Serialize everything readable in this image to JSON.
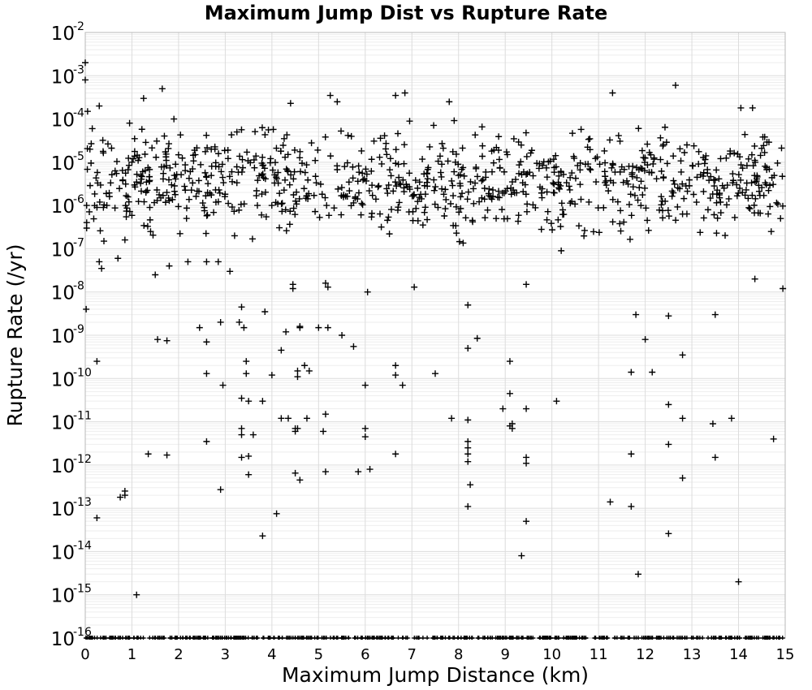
{
  "chart_data": {
    "type": "scatter",
    "title": "Maximum Jump Dist vs Rupture Rate",
    "xlabel": "Maximum Jump Distance (km)",
    "ylabel": "Rupture Rate (/yr)",
    "xlim": [
      0,
      15
    ],
    "ylim": [
      1e-16,
      0.01
    ],
    "yscale": "log",
    "grid": true,
    "marker": "plus",
    "marker_color": "#000000",
    "x_ticks": [
      "0",
      "1",
      "2",
      "3",
      "4",
      "5",
      "6",
      "7",
      "8",
      "9",
      "10",
      "11",
      "12",
      "13",
      "14",
      "15"
    ],
    "y_ticks": [
      {
        "base": "10",
        "exp": "-16"
      },
      {
        "base": "10",
        "exp": "-15"
      },
      {
        "base": "10",
        "exp": "-14"
      },
      {
        "base": "10",
        "exp": "-13"
      },
      {
        "base": "10",
        "exp": "-12"
      },
      {
        "base": "10",
        "exp": "-11"
      },
      {
        "base": "10",
        "exp": "-10"
      },
      {
        "base": "10",
        "exp": "-9"
      },
      {
        "base": "10",
        "exp": "-8"
      },
      {
        "base": "10",
        "exp": "-7"
      },
      {
        "base": "10",
        "exp": "-6"
      },
      {
        "base": "10",
        "exp": "-5"
      },
      {
        "base": "10",
        "exp": "-4"
      },
      {
        "base": "10",
        "exp": "-3"
      },
      {
        "base": "10",
        "exp": "-2"
      }
    ],
    "points": [
      [
        0.0,
        0.002
      ],
      [
        0.0,
        0.0008
      ],
      [
        0.02,
        4e-09
      ],
      [
        0.03,
        3e-07
      ],
      [
        0.05,
        0.00015
      ],
      [
        0.1,
        2e-05
      ],
      [
        0.15,
        6e-05
      ],
      [
        0.25,
        2.5e-10
      ],
      [
        0.25,
        6e-14
      ],
      [
        0.3,
        5e-08
      ],
      [
        0.35,
        3.5e-08
      ],
      [
        0.4,
        1.5e-07
      ],
      [
        0.3,
        0.0002
      ],
      [
        0.2,
        1e-06
      ],
      [
        0.7,
        6e-08
      ],
      [
        0.75,
        1.8e-13
      ],
      [
        0.85,
        2.5e-13
      ],
      [
        0.85,
        2e-13
      ],
      [
        0.85,
        1.6e-07
      ],
      [
        0.95,
        8e-05
      ],
      [
        1.0,
        1e-05
      ],
      [
        1.1,
        1e-15
      ],
      [
        1.25,
        0.0003
      ],
      [
        1.35,
        1.8e-12
      ],
      [
        1.3,
        2e-06
      ],
      [
        1.4,
        2.5e-07
      ],
      [
        1.5,
        2.5e-08
      ],
      [
        1.55,
        8e-10
      ],
      [
        1.65,
        0.0005
      ],
      [
        1.75,
        7.5e-10
      ],
      [
        1.75,
        1.7e-12
      ],
      [
        1.8,
        4e-08
      ],
      [
        1.9,
        0.0001
      ],
      [
        1.85,
        3e-06
      ],
      [
        2.2,
        5e-08
      ],
      [
        2.3,
        7e-06
      ],
      [
        2.45,
        1.5e-09
      ],
      [
        2.6,
        3.5e-12
      ],
      [
        2.6,
        7e-10
      ],
      [
        2.6,
        1.3e-10
      ],
      [
        2.6,
        5e-08
      ],
      [
        2.7,
        2e-05
      ],
      [
        2.85,
        5e-08
      ],
      [
        2.9,
        2.7e-13
      ],
      [
        2.9,
        2e-09
      ],
      [
        2.95,
        7e-11
      ],
      [
        3.1,
        3e-08
      ],
      [
        3.2,
        2e-07
      ],
      [
        3.25,
        5e-05
      ],
      [
        3.3,
        2e-09
      ],
      [
        3.35,
        4.5e-09
      ],
      [
        3.35,
        3.5e-11
      ],
      [
        3.35,
        7e-12
      ],
      [
        3.35,
        5e-12
      ],
      [
        3.35,
        1.5e-12
      ],
      [
        3.4,
        1.5e-09
      ],
      [
        3.45,
        2.5e-10
      ],
      [
        3.45,
        1.3e-10
      ],
      [
        3.5,
        3e-11
      ],
      [
        3.5,
        6e-13
      ],
      [
        3.5,
        1.6e-12
      ],
      [
        3.6,
        5e-12
      ],
      [
        3.8,
        2.3e-14
      ],
      [
        3.8,
        3e-11
      ],
      [
        3.85,
        3.5e-09
      ],
      [
        4.0,
        1.2e-10
      ],
      [
        4.1,
        7.5e-14
      ],
      [
        4.2,
        1.2e-11
      ],
      [
        4.2,
        4.5e-10
      ],
      [
        4.3,
        1.2e-09
      ],
      [
        4.35,
        1.2e-11
      ],
      [
        4.4,
        0.00023
      ],
      [
        4.45,
        1.5e-08
      ],
      [
        4.45,
        1.2e-08
      ],
      [
        4.5,
        7e-12
      ],
      [
        4.5,
        6e-12
      ],
      [
        4.5,
        6.5e-13
      ],
      [
        4.55,
        1.1e-10
      ],
      [
        4.55,
        1.5e-10
      ],
      [
        4.55,
        7e-12
      ],
      [
        4.6,
        1.6e-09
      ],
      [
        4.6,
        4.5e-13
      ],
      [
        4.6,
        1.5e-09
      ],
      [
        4.7,
        2e-10
      ],
      [
        4.75,
        1.2e-11
      ],
      [
        4.8,
        1.5e-10
      ],
      [
        5.0,
        1.5e-09
      ],
      [
        5.1,
        6e-12
      ],
      [
        5.15,
        7e-13
      ],
      [
        5.15,
        1.5e-11
      ],
      [
        5.15,
        1.6e-08
      ],
      [
        5.2,
        1.3e-08
      ],
      [
        5.2,
        1.5e-09
      ],
      [
        5.25,
        0.00035
      ],
      [
        5.4,
        0.00025
      ],
      [
        5.5,
        1e-09
      ],
      [
        5.75,
        5.5e-10
      ],
      [
        5.85,
        7e-13
      ],
      [
        6.0,
        7e-11
      ],
      [
        6.0,
        7e-12
      ],
      [
        6.0,
        4.5e-12
      ],
      [
        6.05,
        1e-08
      ],
      [
        6.1,
        8e-13
      ],
      [
        6.65,
        0.00035
      ],
      [
        6.65,
        2e-10
      ],
      [
        6.65,
        1.2e-10
      ],
      [
        6.65,
        1.8e-12
      ],
      [
        6.8,
        7e-11
      ],
      [
        6.85,
        0.0004
      ],
      [
        7.05,
        1.3e-08
      ],
      [
        7.5,
        1.3e-10
      ],
      [
        7.8,
        0.00025
      ],
      [
        7.85,
        1.2e-11
      ],
      [
        8.2,
        5e-09
      ],
      [
        8.2,
        5e-10
      ],
      [
        8.2,
        1.1e-11
      ],
      [
        8.2,
        3.5e-12
      ],
      [
        8.2,
        2.5e-12
      ],
      [
        8.2,
        1.8e-12
      ],
      [
        8.2,
        1.2e-12
      ],
      [
        8.25,
        3.5e-13
      ],
      [
        8.2,
        1.1e-13
      ],
      [
        8.4,
        8.5e-10
      ],
      [
        8.95,
        2e-11
      ],
      [
        9.1,
        2.5e-10
      ],
      [
        9.1,
        4.5e-11
      ],
      [
        9.1,
        8e-12
      ],
      [
        9.15,
        7e-12
      ],
      [
        9.15,
        9e-12
      ],
      [
        9.35,
        8e-15
      ],
      [
        9.45,
        1.5e-12
      ],
      [
        9.45,
        1.1e-12
      ],
      [
        9.45,
        5e-14
      ],
      [
        9.45,
        2e-11
      ],
      [
        9.45,
        1.5e-08
      ],
      [
        10.1,
        3e-11
      ],
      [
        10.2,
        9e-08
      ],
      [
        11.25,
        1.4e-13
      ],
      [
        11.3,
        0.0004
      ],
      [
        11.8,
        3e-09
      ],
      [
        11.85,
        3e-15
      ],
      [
        11.7,
        1.4e-10
      ],
      [
        11.7,
        1.8e-12
      ],
      [
        11.7,
        1.1e-13
      ],
      [
        12.0,
        8e-10
      ],
      [
        12.15,
        1.4e-10
      ],
      [
        12.5,
        2.8e-09
      ],
      [
        12.5,
        2.5e-11
      ],
      [
        12.5,
        3e-12
      ],
      [
        12.5,
        2.6e-14
      ],
      [
        12.65,
        0.0006
      ],
      [
        12.8,
        3.5e-10
      ],
      [
        12.8,
        1.2e-11
      ],
      [
        12.8,
        5e-13
      ],
      [
        13.45,
        9e-12
      ],
      [
        13.5,
        3e-09
      ],
      [
        13.5,
        1.5e-12
      ],
      [
        13.85,
        1.2e-11
      ],
      [
        14.0,
        2e-15
      ],
      [
        14.75,
        4e-12
      ],
      [
        14.95,
        1.2e-08
      ],
      [
        14.05,
        0.00018
      ],
      [
        14.3,
        0.00018
      ],
      [
        14.35,
        2e-08
      ],
      [
        14.9,
        5e-07
      ],
      [
        14.7,
        2.5e-07
      ]
    ],
    "dense_band": {
      "x_min": 0,
      "x_max": 15,
      "y_min": 8e-08,
      "y_max": 0.00015,
      "density": "high"
    },
    "floor_band": {
      "x_min": 0,
      "x_max": 15,
      "y": 1e-16,
      "density": "high"
    }
  }
}
